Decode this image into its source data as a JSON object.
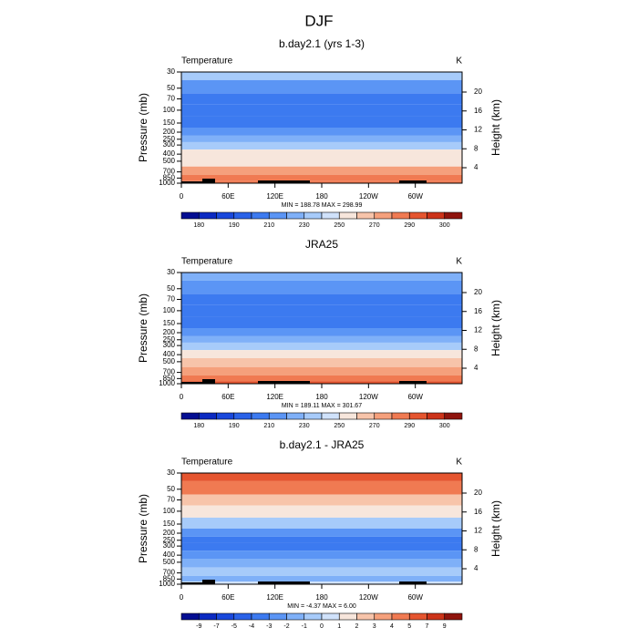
{
  "title": "DJF",
  "chart_data": [
    {
      "type": "contour",
      "title": "b.day2.1 (yrs 1-3)",
      "left_label": "Temperature",
      "right_label": "K",
      "ylabel": "Pressure (mb)",
      "y2label": "Height (km)",
      "xlim": [
        0,
        360
      ],
      "xticks": [
        0,
        {
          "value": 60,
          "label": "60E"
        },
        {
          "value": 120,
          "label": "120E"
        },
        180,
        {
          "value": 240,
          "label": "120W"
        },
        {
          "value": 300,
          "label": "60W"
        }
      ],
      "ylim": [
        1000,
        30
      ],
      "ylog": true,
      "yticks": [
        30,
        50,
        70,
        100,
        150,
        200,
        250,
        300,
        400,
        500,
        700,
        850,
        1000
      ],
      "y2lim": [
        0.72,
        24.24
      ],
      "y2ticks": [
        4,
        8,
        12,
        16,
        20
      ],
      "y": [
        30,
        50,
        70,
        100,
        150,
        200,
        250,
        300,
        400,
        500,
        700,
        850,
        1000
      ],
      "values": [
        232,
        218,
        206,
        203,
        207,
        216,
        226,
        236,
        251,
        259,
        272,
        281,
        287
      ],
      "stats": "MIN = 188.78  MAX = 298.99",
      "levels": [
        180,
        185,
        190,
        200,
        210,
        220,
        230,
        240,
        250,
        260,
        270,
        280,
        290,
        295,
        300
      ],
      "level_ticks": [
        0,
        2,
        4,
        6,
        8,
        10,
        12,
        14
      ],
      "colors": [
        "#040e92",
        "#0b2ac2",
        "#1948dc",
        "#2a62e8",
        "#3c7af0",
        "#5b95f5",
        "#7fb0f8",
        "#a7cbfa",
        "#d0e2fb",
        "#f7e6dc",
        "#f7c4aa",
        "#f5a07c",
        "#f07a52",
        "#e5552f",
        "#cc3319",
        "#8f140d"
      ]
    },
    {
      "type": "contour",
      "title": "JRA25",
      "left_label": "Temperature",
      "right_label": "K",
      "ylabel": "Pressure (mb)",
      "y2label": "Height (km)",
      "xlim": [
        0,
        360
      ],
      "xticks": [
        0,
        {
          "value": 60,
          "label": "60E"
        },
        {
          "value": 120,
          "label": "120E"
        },
        180,
        {
          "value": 240,
          "label": "120W"
        },
        {
          "value": 300,
          "label": "60W"
        }
      ],
      "ylim": [
        1000,
        30
      ],
      "ylog": true,
      "yticks": [
        30,
        50,
        70,
        100,
        150,
        200,
        250,
        300,
        400,
        500,
        700,
        850,
        1000
      ],
      "y2lim": [
        0.72,
        24.24
      ],
      "y2ticks": [
        4,
        8,
        12,
        16,
        20
      ],
      "y": [
        30,
        50,
        70,
        100,
        150,
        200,
        250,
        300,
        400,
        500,
        700,
        850,
        1000
      ],
      "values": [
        226,
        214,
        205,
        202,
        207,
        218,
        228,
        238,
        252,
        260,
        273,
        282,
        291
      ],
      "stats": "MIN = 189.11  MAX = 301.67",
      "levels": [
        180,
        185,
        190,
        200,
        210,
        220,
        230,
        240,
        250,
        260,
        270,
        280,
        290,
        295,
        300
      ],
      "level_ticks": [
        0,
        2,
        4,
        6,
        8,
        10,
        12,
        14
      ],
      "colors": [
        "#040e92",
        "#0b2ac2",
        "#1948dc",
        "#2a62e8",
        "#3c7af0",
        "#5b95f5",
        "#7fb0f8",
        "#a7cbfa",
        "#d0e2fb",
        "#f7e6dc",
        "#f7c4aa",
        "#f5a07c",
        "#f07a52",
        "#e5552f",
        "#cc3319",
        "#8f140d"
      ]
    },
    {
      "type": "contour",
      "title": "b.day2.1 - JRA25",
      "left_label": "Temperature",
      "right_label": "K",
      "ylabel": "Pressure (mb)",
      "y2label": "Height (km)",
      "xlim": [
        0,
        360
      ],
      "xticks": [
        0,
        {
          "value": 60,
          "label": "60E"
        },
        {
          "value": 120,
          "label": "120E"
        },
        180,
        {
          "value": 240,
          "label": "120W"
        },
        {
          "value": 300,
          "label": "60W"
        }
      ],
      "ylim": [
        1000,
        30
      ],
      "ylog": true,
      "yticks": [
        30,
        50,
        70,
        100,
        150,
        200,
        250,
        300,
        400,
        500,
        700,
        850,
        1000
      ],
      "y2lim": [
        0.72,
        24.24
      ],
      "y2ticks": [
        4,
        8,
        12,
        16,
        20
      ],
      "y": [
        30,
        50,
        70,
        100,
        150,
        200,
        250,
        300,
        400,
        500,
        700,
        850,
        1000
      ],
      "values": [
        6,
        4.5,
        2.5,
        1.5,
        -0.5,
        -2.5,
        -3.5,
        -3.5,
        -2.5,
        -1.5,
        -0.5,
        -1.5,
        0.5
      ],
      "stats": "MIN =  -4.37  MAX =   6.00",
      "levels": [
        -9,
        -7,
        -5,
        -4,
        -3,
        -2,
        -1,
        0,
        1,
        2,
        3,
        4,
        5,
        7,
        9
      ],
      "level_ticks": [
        0,
        1,
        2,
        3,
        4,
        5,
        6,
        7,
        8,
        9,
        10,
        11,
        12,
        13,
        14
      ],
      "colors": [
        "#040e92",
        "#0b2ac2",
        "#1948dc",
        "#2a62e8",
        "#3c7af0",
        "#5b95f5",
        "#7fb0f8",
        "#a7cbfa",
        "#d0e2fb",
        "#f7e6dc",
        "#f7c4aa",
        "#f5a07c",
        "#f07a52",
        "#e5552f",
        "#cc3319",
        "#8f140d"
      ]
    }
  ]
}
